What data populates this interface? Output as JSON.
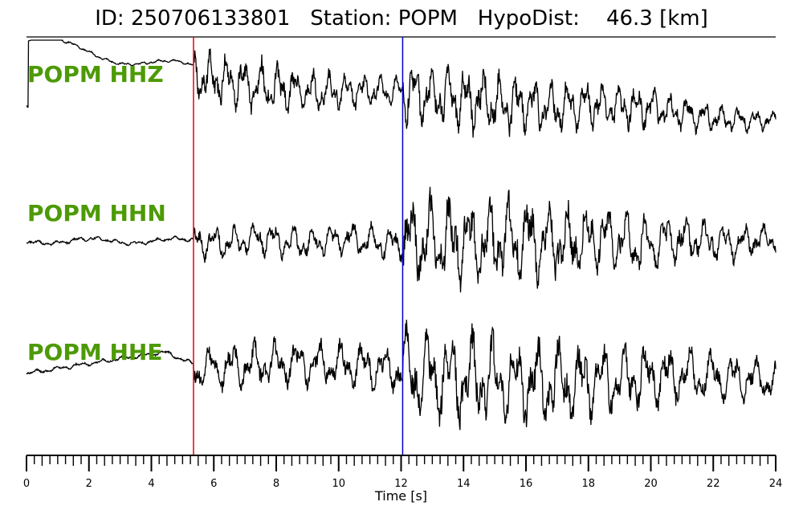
{
  "title": {
    "id_label": "ID:",
    "id_value": "250706133801",
    "station_label": "Station:",
    "station_value": "POPM",
    "hypodist_label": "HypoDist:",
    "hypodist_value": "46.3",
    "hypodist_unit": "[km]"
  },
  "chart_data": {
    "type": "line",
    "title": "ID: 250706133801   Station: POPM   HypoDist:    46.3 [km]",
    "xlabel": "Time [s]",
    "xlim": [
      0,
      24
    ],
    "x_major_ticks": [
      0,
      2,
      4,
      6,
      8,
      10,
      12,
      14,
      16,
      18,
      20,
      22,
      24
    ],
    "x_tick_labels": [
      "0",
      "2",
      "4",
      "6",
      "8",
      "10",
      "12",
      "14",
      "16",
      "18",
      "20",
      "22",
      "24"
    ],
    "x_minor_tick_step": 0.25,
    "grid": false,
    "markers": [
      {
        "name": "red-pick-line",
        "x": 5.35,
        "color": "#e8000b"
      },
      {
        "name": "blue-pick-line",
        "x": 12.05,
        "color": "#0000cc"
      }
    ],
    "series": [
      {
        "name": "POPM HHZ",
        "color": "#000000",
        "label_color": "#4d9a06"
      },
      {
        "name": "POPM HHN",
        "color": "#000000",
        "label_color": "#4d9a06"
      },
      {
        "name": "POPM HHE",
        "color": "#000000",
        "label_color": "#4d9a06"
      }
    ]
  }
}
